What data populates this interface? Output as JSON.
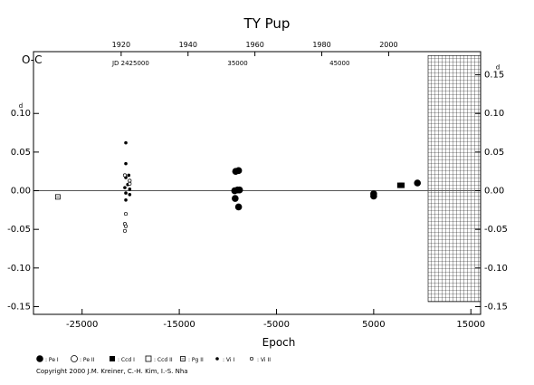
{
  "chart_data": {
    "type": "scatter",
    "title": "TY  Pup",
    "ylabel": "O-C",
    "xlabel": "Epoch",
    "xlim": [
      -30000,
      16000
    ],
    "ylim": [
      -0.16,
      0.18
    ],
    "x_ticks": [
      -25000,
      -15000,
      -5000,
      5000,
      15000
    ],
    "x_tick_labels": [
      "-25000",
      "-15000",
      "-5000",
      "5000",
      "15000"
    ],
    "y_ticks": [
      -0.15,
      -0.1,
      -0.05,
      0.0,
      0.05,
      0.1
    ],
    "y_tick_labels": [
      "-0.15",
      "-0.10",
      "-0.05",
      "0.00",
      "0.05",
      "0.10"
    ],
    "right_y_ticks": [
      -0.15,
      -0.1,
      -0.05,
      0.0,
      0.05,
      0.1,
      0.15
    ],
    "right_y_tick_labels": [
      "-0.15",
      "-0.10",
      "-0.05",
      "0.00",
      "0.05",
      "0.10",
      "0.15"
    ],
    "day_mark": "d",
    "top_year_axis": {
      "ticks": [
        {
          "epoch": -20980,
          "label": "1920"
        },
        {
          "epoch": -14100,
          "label": "1940"
        },
        {
          "epoch": -7220,
          "label": "1960"
        },
        {
          "epoch": -340,
          "label": "1980"
        },
        {
          "epoch": 6540,
          "label": "2000"
        }
      ]
    },
    "jd_labels": [
      {
        "epoch": -20000,
        "label": "JD 2425000"
      },
      {
        "epoch": -9000,
        "label": "35000"
      },
      {
        "epoch": 1500,
        "label": "45000"
      }
    ],
    "future_region_start": 10600,
    "series": [
      {
        "marker": "pe1",
        "points": [
          [
            -9200,
            0.025
          ],
          [
            -8900,
            0.026
          ],
          [
            -9300,
            0.0
          ],
          [
            -9000,
            0.001
          ],
          [
            -8800,
            0.001
          ],
          [
            -9250,
            -0.01
          ],
          [
            -8900,
            -0.021
          ],
          [
            5000,
            -0.004
          ],
          [
            5000,
            -0.007
          ],
          [
            9500,
            0.01
          ]
        ]
      },
      {
        "marker": "vi1",
        "points": [
          [
            -20500,
            0.062
          ],
          [
            -20500,
            0.035
          ],
          [
            -20500,
            0.017
          ],
          [
            -20200,
            0.02
          ],
          [
            -20300,
            0.008
          ],
          [
            -20600,
            0.004
          ],
          [
            -20100,
            0.002
          ],
          [
            -20500,
            -0.003
          ],
          [
            -20500,
            -0.012
          ],
          [
            -20100,
            -0.005
          ]
        ]
      },
      {
        "marker": "vi2",
        "points": [
          [
            -20600,
            0.02
          ],
          [
            -20100,
            0.013
          ],
          [
            -20100,
            0.009
          ],
          [
            -20500,
            -0.03
          ],
          [
            -20600,
            -0.043
          ],
          [
            -20500,
            -0.046
          ],
          [
            -20600,
            -0.052
          ]
        ]
      },
      {
        "marker": "ccd1",
        "points": [
          [
            7700,
            0.007
          ],
          [
            7900,
            0.007
          ]
        ]
      },
      {
        "marker": "pg2",
        "points": [
          [
            -27500,
            -0.008
          ]
        ]
      }
    ],
    "legend": [
      {
        "marker": "pe1",
        "label": ": Pe I"
      },
      {
        "marker": "pe2",
        "label": ": Pe II"
      },
      {
        "marker": "ccd1",
        "label": ": Ccd I"
      },
      {
        "marker": "ccd2",
        "label": ": Ccd II"
      },
      {
        "marker": "pg2",
        "label": ": Pg II"
      },
      {
        "marker": "vi1",
        "label": ": Vi I"
      },
      {
        "marker": "vi2",
        "label": ": Vi II"
      }
    ],
    "legend_placement": "bottom",
    "grid": false
  },
  "copyright": "Copyright 2000 J.M. Kreiner, C.-H. Kim, I.-S. Nha"
}
